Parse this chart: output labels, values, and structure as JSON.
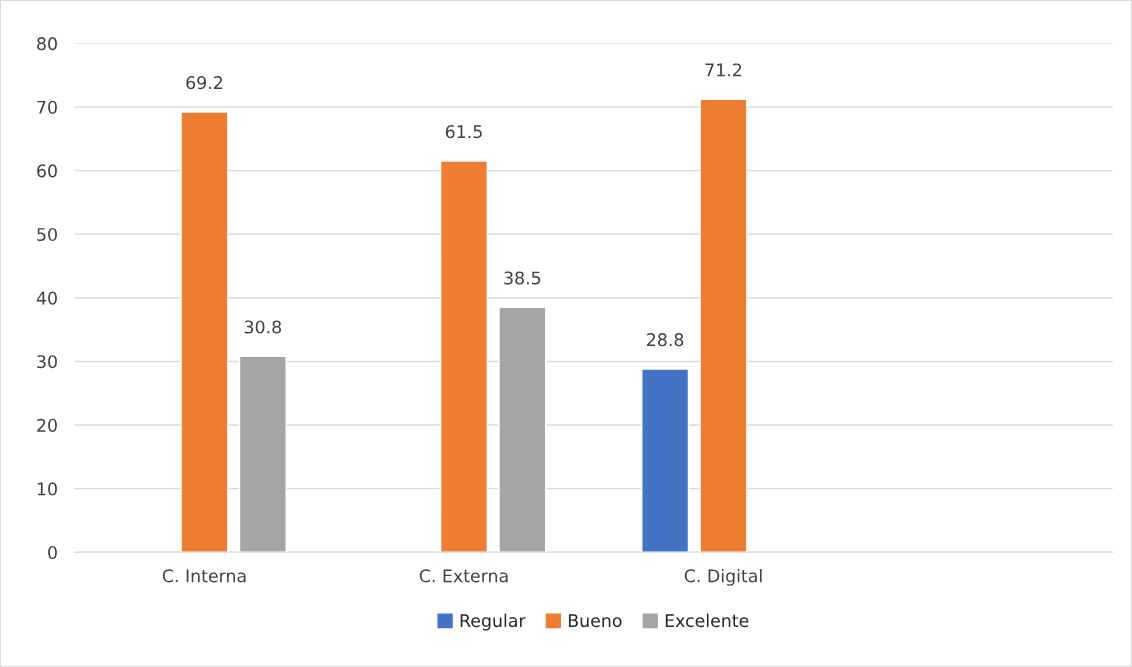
{
  "chart_data": {
    "type": "bar",
    "categories": [
      "C. Interna",
      "C. Externa",
      "C. Digital",
      null
    ],
    "series": [
      {
        "name": "Regular",
        "color": "#4472c4",
        "values": [
          null,
          null,
          28.8,
          null
        ]
      },
      {
        "name": "Bueno",
        "color": "#ed7d31",
        "values": [
          69.2,
          61.5,
          71.2,
          null
        ]
      },
      {
        "name": "Excelente",
        "color": "#a5a5a5",
        "values": [
          30.8,
          38.5,
          null,
          null
        ]
      }
    ],
    "ylim": [
      0,
      80
    ],
    "yticks": [
      0,
      10,
      20,
      30,
      40,
      50,
      60,
      70,
      80
    ],
    "grid": "y",
    "legend": "bottom",
    "data_labels": true
  }
}
